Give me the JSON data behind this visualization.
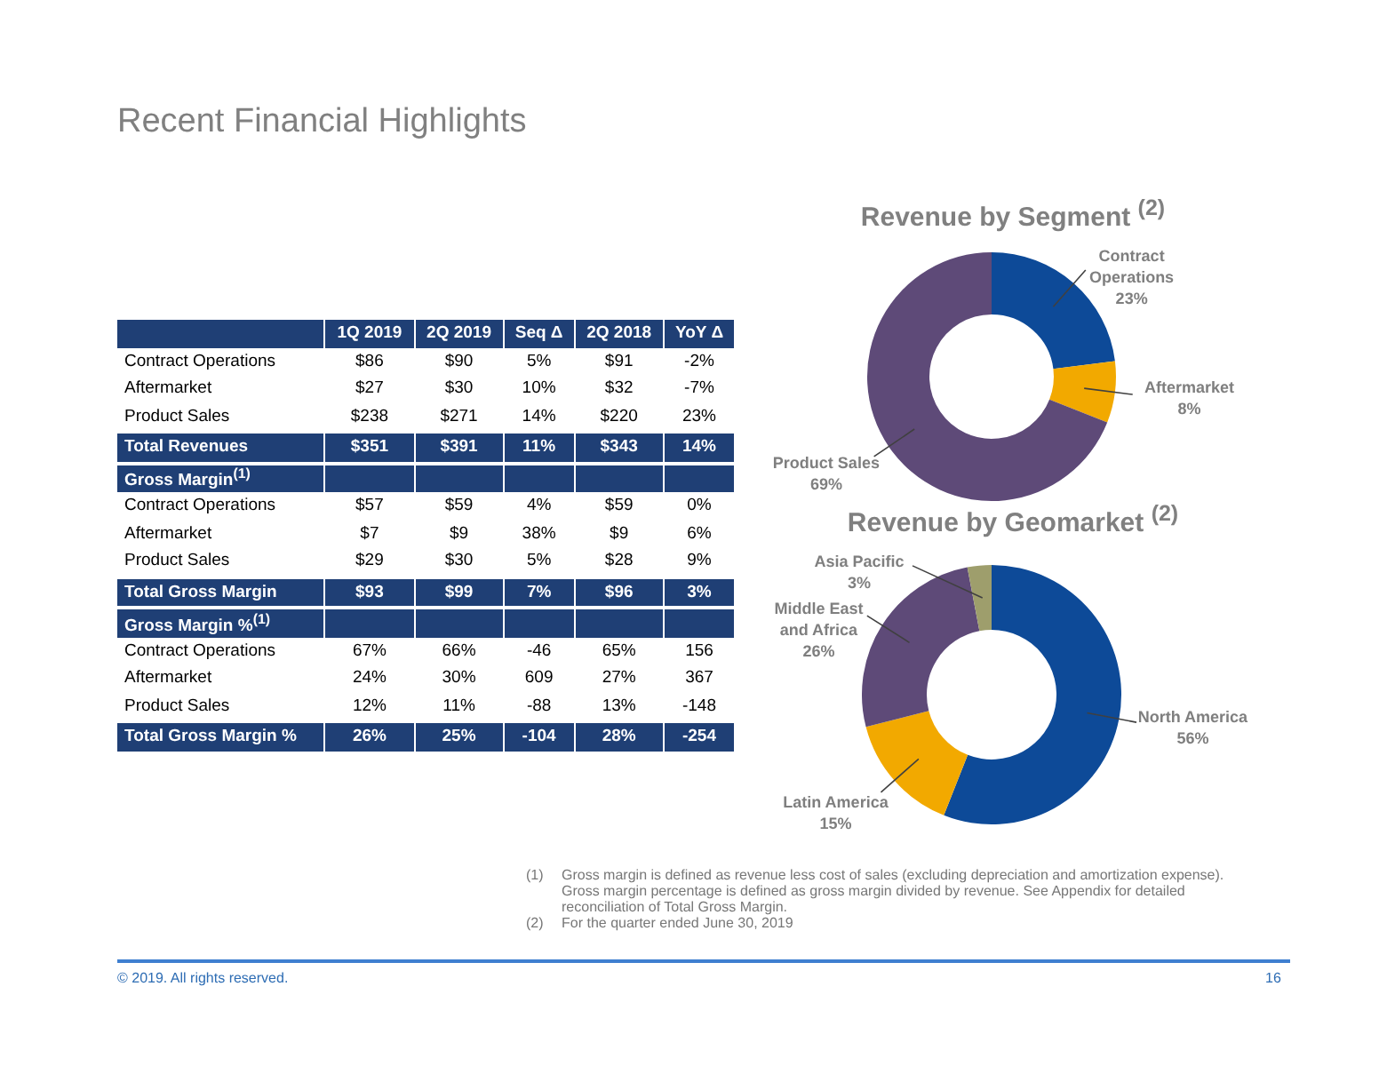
{
  "chart_data": [
    {
      "type": "other",
      "title": "Recent Financial Highlights",
      "annotations": [
        "1Q 2019",
        "2Q 2019",
        "Seq Δ",
        "2Q 2018",
        "YoY Δ",
        "Contract Operations",
        "$86",
        "$90",
        "5%",
        "$91",
        "-2%",
        "Aftermarket",
        "$27",
        "$30",
        "10%",
        "$32",
        "-7%",
        "Product Sales",
        "$238",
        "$271",
        "14%",
        "$220",
        "23%",
        "Total Revenues",
        "$351",
        "$391",
        "11%",
        "$343",
        "14%",
        "Gross Margin$^{(1)}$",
        "Contract Operations",
        "$57",
        "$59",
        "4%",
        "$59",
        "0%",
        "Aftermarket",
        "$7",
        "$9",
        "38%",
        "$9",
        "6%",
        "Product Sales",
        "$29",
        "$30",
        "5%",
        "$28",
        "9%",
        "Total Gross Margin",
        "$93",
        "$99",
        "7%",
        "$96",
        "3%",
        "Gross Margin %$^{(1)}$",
        "Contract Operations",
        "67%",
        "66%",
        "-46",
        "65%",
        "156",
        "Aftermarket",
        "24%",
        "30%",
        "609",
        "27%",
        "367",
        "Product Sales",
        "12%",
        "11%",
        "-88",
        "13%",
        "-148",
        "Total Gross Margin %",
        "26%",
        "25%",
        "-104",
        "28%",
        "-254",
        "(1)",
        "Gross margin is defined as revenue less cost of sales (excluding depreciation and amortization expense). Gross margin percentage is defined as gross margin divided by revenue. See Appendix for detailed reconciliation of Total Gross Margin.",
        "(2)",
        "For the quarter ended June 30, 2019",
        "© 2019. All rights reserved.",
        "16"
      ]
    },
    {
      "type": "donut",
      "title": "Revenue by Segment $^{(2)}$",
      "categories": [
        "Contract Operations",
        "Aftermarket",
        "Product Sales"
      ],
      "values": [
        23,
        8,
        69
      ],
      "colors": [
        "#0d4a98",
        "#f2a900",
        "#5e4a78"
      ],
      "value_labels": [
        "23%",
        "8%",
        "69%"
      ]
    },
    {
      "type": "donut",
      "title": "Revenue by Geomarket $^{(2)}$",
      "categories": [
        "North America",
        "Latin America",
        "Middle East and Africa",
        "Asia Pacific"
      ],
      "values": [
        56,
        15,
        26,
        3
      ],
      "colors": [
        "#0d4a98",
        "#f2a900",
        "#5e4a78",
        "#9e9e6c"
      ],
      "value_labels": [
        "56%",
        "15%",
        "26%",
        "3%"
      ]
    }
  ]
}
